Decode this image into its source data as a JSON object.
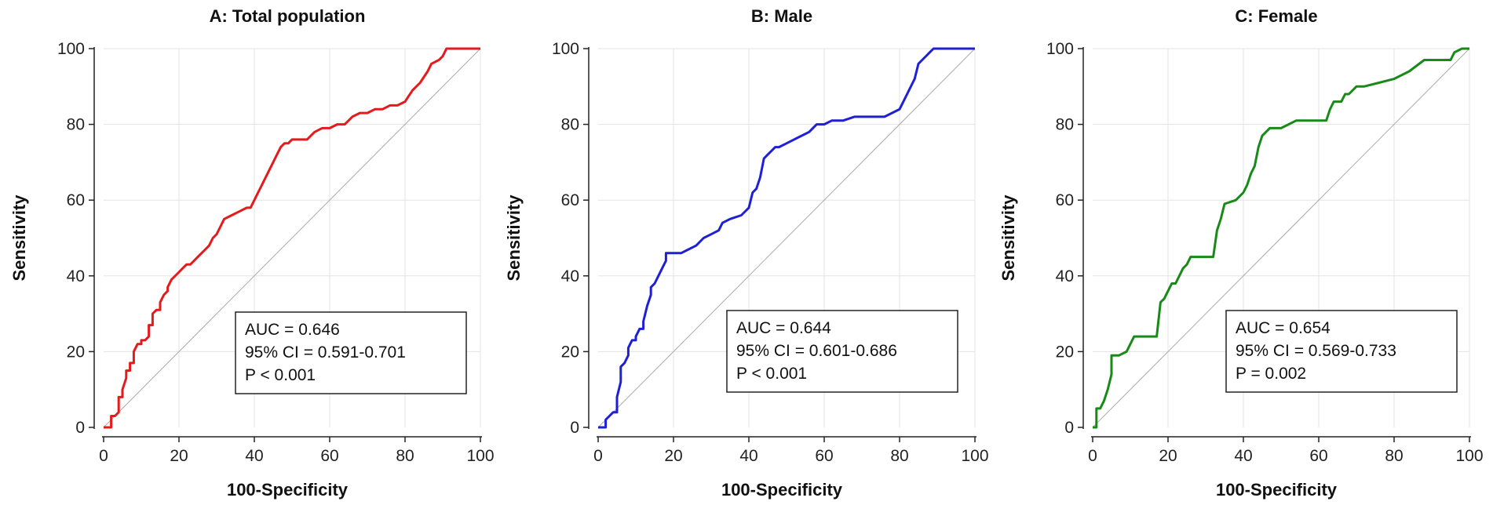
{
  "chart_data": [
    {
      "type": "line",
      "title": "A: Total population",
      "xlabel": "100-Specificity",
      "ylabel": "Sensitivity",
      "xlim": [
        0,
        100
      ],
      "ylim": [
        0,
        100
      ],
      "xticks": [
        "0",
        "20",
        "40",
        "60",
        "80",
        "100"
      ],
      "yticks": [
        "0",
        "20",
        "40",
        "60",
        "80",
        "100"
      ],
      "grid": true,
      "color": "#e41a1c",
      "reference_line": {
        "name": "chance",
        "x": [
          0,
          100
        ],
        "y": [
          0,
          100
        ]
      },
      "series": [
        {
          "name": "ROC",
          "x": [
            0,
            1,
            2,
            2,
            3,
            4,
            4,
            5,
            5,
            6,
            6,
            7,
            7,
            8,
            8,
            9,
            10,
            10,
            11,
            12,
            12,
            13,
            13,
            14,
            15,
            15,
            16,
            17,
            17,
            18,
            19,
            20,
            21,
            22,
            23,
            24,
            25,
            26,
            27,
            28,
            29,
            30,
            31,
            32,
            34,
            36,
            38,
            39,
            40,
            41,
            42,
            43,
            44,
            45,
            46,
            47,
            48,
            49,
            50,
            52,
            54,
            55,
            56,
            58,
            60,
            62,
            64,
            65,
            66,
            68,
            70,
            72,
            74,
            76,
            78,
            80,
            82,
            84,
            86,
            87,
            89,
            90,
            91,
            100
          ],
          "y": [
            0,
            0,
            0,
            3,
            3,
            4,
            8,
            8,
            10,
            13,
            15,
            15,
            17,
            17,
            20,
            22,
            22,
            23,
            23,
            24,
            27,
            27,
            30,
            31,
            31,
            33,
            35,
            36,
            37,
            39,
            40,
            41,
            42,
            43,
            43,
            44,
            45,
            46,
            47,
            48,
            50,
            51,
            53,
            55,
            56,
            57,
            58,
            58,
            60,
            62,
            64,
            66,
            68,
            70,
            72,
            74,
            75,
            75,
            76,
            76,
            76,
            77,
            78,
            79,
            79,
            80,
            80,
            81,
            82,
            83,
            83,
            84,
            84,
            85,
            85,
            86,
            89,
            91,
            94,
            96,
            97,
            98,
            100,
            100
          ]
        }
      ],
      "annotation": {
        "lines": [
          "AUC = 0.646",
          "95% CI = 0.591-0.701",
          "P < 0.001"
        ]
      }
    },
    {
      "type": "line",
      "title": "B: Male",
      "xlabel": "100-Specificity",
      "ylabel": "Sensitivity",
      "xlim": [
        0,
        100
      ],
      "ylim": [
        0,
        100
      ],
      "xticks": [
        "0",
        "20",
        "40",
        "60",
        "80",
        "100"
      ],
      "yticks": [
        "0",
        "20",
        "40",
        "60",
        "80",
        "100"
      ],
      "grid": true,
      "color": "#1f1fd6",
      "reference_line": {
        "name": "chance",
        "x": [
          0,
          100
        ],
        "y": [
          0,
          100
        ]
      },
      "series": [
        {
          "name": "ROC",
          "x": [
            0,
            1,
            2,
            2,
            3,
            4,
            5,
            5,
            6,
            6,
            7,
            8,
            8,
            9,
            10,
            10,
            11,
            12,
            12,
            13,
            14,
            14,
            15,
            16,
            17,
            18,
            18,
            19,
            20,
            22,
            24,
            26,
            28,
            30,
            32,
            33,
            35,
            38,
            40,
            41,
            42,
            43,
            44,
            45,
            46,
            47,
            48,
            50,
            52,
            54,
            56,
            58,
            60,
            62,
            65,
            68,
            72,
            76,
            80,
            82,
            84,
            85,
            86,
            88,
            89,
            90,
            100
          ],
          "y": [
            0,
            0,
            0,
            2,
            3,
            4,
            4,
            8,
            12,
            16,
            17,
            19,
            21,
            23,
            23,
            24,
            26,
            26,
            28,
            32,
            35,
            37,
            38,
            40,
            42,
            44,
            46,
            46,
            46,
            46,
            47,
            48,
            50,
            51,
            52,
            54,
            55,
            56,
            58,
            62,
            63,
            66,
            71,
            72,
            73,
            74,
            74,
            75,
            76,
            77,
            78,
            80,
            80,
            81,
            81,
            82,
            82,
            82,
            84,
            88,
            92,
            96,
            97,
            99,
            100,
            100,
            100
          ]
        }
      ],
      "annotation": {
        "lines": [
          "AUC = 0.644",
          "95% CI = 0.601-0.686",
          "P < 0.001"
        ]
      }
    },
    {
      "type": "line",
      "title": "C: Female",
      "xlabel": "100-Specificity",
      "ylabel": "Sensitivity",
      "xlim": [
        0,
        100
      ],
      "ylim": [
        0,
        100
      ],
      "xticks": [
        "0",
        "20",
        "40",
        "60",
        "80",
        "100"
      ],
      "yticks": [
        "0",
        "20",
        "40",
        "60",
        "80",
        "100"
      ],
      "grid": true,
      "color": "#188a18",
      "reference_line": {
        "name": "chance",
        "x": [
          0,
          100
        ],
        "y": [
          0,
          100
        ]
      },
      "series": [
        {
          "name": "ROC",
          "x": [
            0,
            1,
            1,
            2,
            3,
            4,
            5,
            5,
            6,
            7,
            9,
            10,
            11,
            12,
            17,
            18,
            19,
            20,
            21,
            22,
            23,
            24,
            25,
            26,
            27,
            28,
            29,
            32,
            33,
            34,
            35,
            38,
            40,
            41,
            42,
            43,
            44,
            45,
            46,
            47,
            48,
            50,
            52,
            54,
            56,
            58,
            60,
            62,
            63,
            64,
            66,
            67,
            68,
            70,
            72,
            76,
            80,
            84,
            88,
            92,
            95,
            96,
            98,
            100
          ],
          "y": [
            0,
            0,
            5,
            5,
            7,
            10,
            14,
            19,
            19,
            19,
            20,
            22,
            24,
            24,
            24,
            33,
            34,
            36,
            38,
            38,
            40,
            42,
            43,
            45,
            45,
            45,
            45,
            45,
            52,
            55,
            59,
            60,
            62,
            64,
            67,
            69,
            74,
            77,
            78,
            79,
            79,
            79,
            80,
            81,
            81,
            81,
            81,
            81,
            84,
            86,
            86,
            88,
            88,
            90,
            90,
            91,
            92,
            94,
            97,
            97,
            97,
            99,
            100,
            100
          ]
        }
      ],
      "annotation": {
        "lines": [
          "AUC = 0.654",
          "95% CI = 0.569-0.733",
          "P = 0.002"
        ]
      }
    }
  ]
}
